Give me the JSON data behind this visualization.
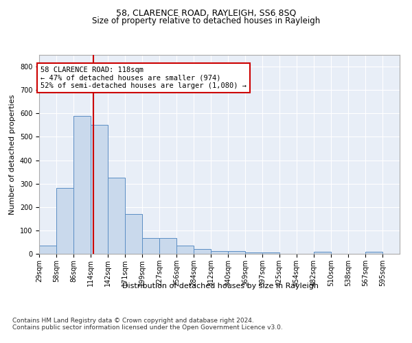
{
  "title": "58, CLARENCE ROAD, RAYLEIGH, SS6 8SQ",
  "subtitle": "Size of property relative to detached houses in Rayleigh",
  "xlabel": "Distribution of detached houses by size in Rayleigh",
  "ylabel": "Number of detached properties",
  "bar_color": "#c9d9ec",
  "bar_edge_color": "#5b8ec4",
  "bg_color": "#e8eef7",
  "grid_color": "#ffffff",
  "vline_x": 118,
  "vline_color": "#cc0000",
  "annotation_text": "58 CLARENCE ROAD: 118sqm\n← 47% of detached houses are smaller (974)\n52% of semi-detached houses are larger (1,080) →",
  "annotation_box_color": "#cc0000",
  "bin_edges": [
    29,
    57,
    85,
    113,
    141,
    169,
    197,
    225,
    253,
    281,
    309,
    337,
    365,
    393,
    421,
    449,
    477,
    505,
    533,
    561,
    589,
    617
  ],
  "bar_heights": [
    35,
    280,
    590,
    550,
    325,
    170,
    68,
    68,
    35,
    20,
    12,
    12,
    6,
    6,
    0,
    0,
    8,
    0,
    0,
    8,
    0
  ],
  "ylim": [
    0,
    850
  ],
  "yticks": [
    0,
    100,
    200,
    300,
    400,
    500,
    600,
    700,
    800
  ],
  "xtick_labels": [
    "29sqm",
    "58sqm",
    "86sqm",
    "114sqm",
    "142sqm",
    "171sqm",
    "199sqm",
    "227sqm",
    "256sqm",
    "284sqm",
    "312sqm",
    "340sqm",
    "369sqm",
    "397sqm",
    "425sqm",
    "454sqm",
    "482sqm",
    "510sqm",
    "538sqm",
    "567sqm",
    "595sqm"
  ],
  "footer": "Contains HM Land Registry data © Crown copyright and database right 2024.\nContains public sector information licensed under the Open Government Licence v3.0.",
  "title_fontsize": 9,
  "subtitle_fontsize": 8.5,
  "axis_label_fontsize": 8,
  "tick_fontsize": 7,
  "annotation_fontsize": 7.5,
  "footer_fontsize": 6.5
}
